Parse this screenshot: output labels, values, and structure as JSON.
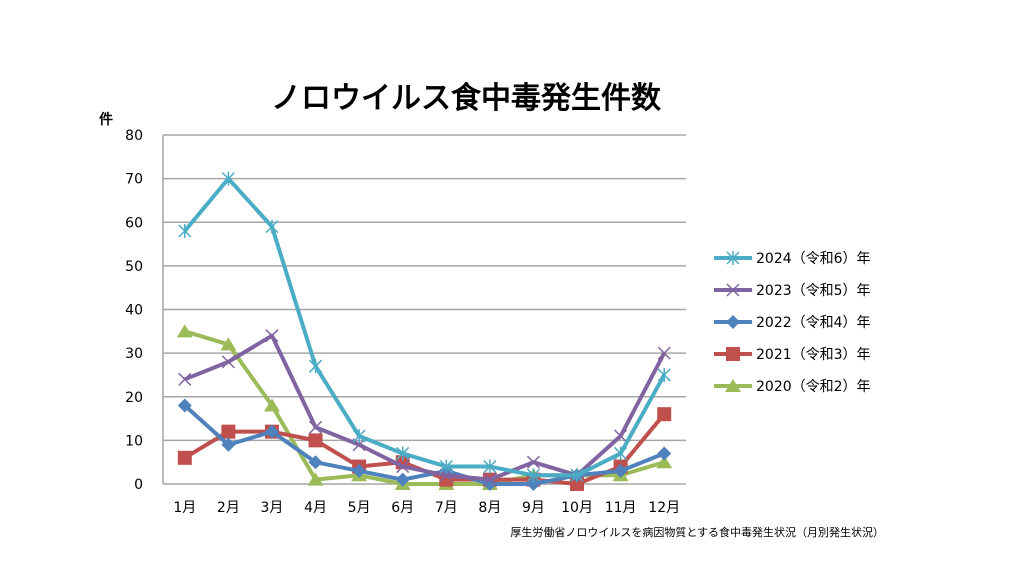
{
  "chart_data": {
    "type": "line",
    "title": "ノロウイルス食中毒発生件数",
    "ylabel": "件",
    "xlabel": "",
    "ylim": [
      0,
      80
    ],
    "yticks": [
      0,
      10,
      20,
      30,
      40,
      50,
      60,
      70,
      80
    ],
    "grid": true,
    "legend_position": "right",
    "categories": [
      "1月",
      "2月",
      "3月",
      "4月",
      "5月",
      "6月",
      "7月",
      "8月",
      "9月",
      "10月",
      "11月",
      "12月"
    ],
    "series": [
      {
        "name": "2024（令和6）年",
        "color": "#4bacc6",
        "marker": "star",
        "values": [
          58,
          70,
          59,
          27,
          11,
          7,
          4,
          4,
          2,
          2,
          7,
          25
        ]
      },
      {
        "name": "2023（令和5）年",
        "color": "#8064a2",
        "marker": "x",
        "values": [
          24,
          28,
          34,
          13,
          9,
          4,
          2,
          1,
          5,
          2,
          11,
          30
        ]
      },
      {
        "name": "2022（令和4）年",
        "color": "#4f81bd",
        "marker": "diamond",
        "values": [
          18,
          9,
          12,
          5,
          3,
          1,
          3,
          0,
          0,
          2,
          3,
          7
        ]
      },
      {
        "name": "2021（令和3）年",
        "color": "#c0504d",
        "marker": "square",
        "values": [
          6,
          12,
          12,
          10,
          4,
          5,
          1,
          1,
          1,
          0,
          4,
          16
        ]
      },
      {
        "name": "2020（令和2）年",
        "color": "#9bbb59",
        "marker": "triangle",
        "values": [
          35,
          32,
          18,
          1,
          2,
          0,
          0,
          0,
          2,
          2,
          2,
          5
        ]
      }
    ],
    "source_note": "厚生労働省ノロウイルスを病因物質とする食中毒発生状況（月別発生状況）"
  }
}
